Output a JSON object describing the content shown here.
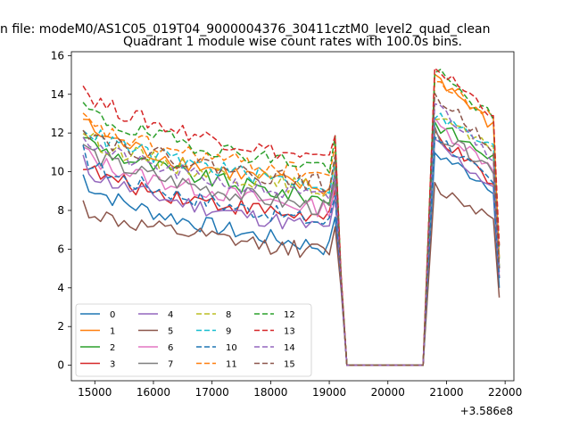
{
  "chart_data": {
    "type": "line",
    "suptitle": "n file: modeM0/AS1C05_019T04_9000004376_30411cztM0_level2_quad_clean",
    "title": "Quadrant 1 module wise count rates with 100.0s bins.",
    "xlabel": "",
    "ylabel": "",
    "x_offset_label": "+3.586e8",
    "xlim": [
      14600,
      22150
    ],
    "ylim": [
      -0.8,
      16.2
    ],
    "xticks": [
      15000,
      16000,
      17000,
      18000,
      19000,
      20000,
      21000,
      22000
    ],
    "xtick_labels": [
      "15000",
      "16000",
      "17000",
      "18000",
      "19000",
      "20000",
      "21000",
      "22000"
    ],
    "yticks": [
      0,
      2,
      4,
      6,
      8,
      10,
      12,
      14,
      16
    ],
    "ytick_labels": [
      "0",
      "2",
      "4",
      "6",
      "8",
      "10",
      "12",
      "14",
      "16"
    ],
    "grid": false,
    "legend_location": "lower-left",
    "legend_columns": 4,
    "segments": {
      "seg1_start": 14800,
      "seg1_end": 19100,
      "step": 100,
      "gap_start": 19300,
      "gap_end": 20600,
      "seg2_start": 20800,
      "seg2_end": 21900
    },
    "series": [
      {
        "name": "0",
        "color": "#1f77b4",
        "dash": "solid",
        "seg1": [
          9.8,
          6.0
        ],
        "drop": 4.2,
        "seg2": [
          11.0,
          9.0
        ],
        "end": 4.0
      },
      {
        "name": "1",
        "color": "#ff7f0e",
        "dash": "solid",
        "seg1": [
          12.8,
          9.0
        ],
        "drop": 4.6,
        "seg2": [
          15.0,
          12.0
        ],
        "end": 5.0
      },
      {
        "name": "2",
        "color": "#2ca02c",
        "dash": "solid",
        "seg1": [
          12.0,
          8.5
        ],
        "drop": 4.5,
        "seg2": [
          12.5,
          10.5
        ],
        "end": 5.5
      },
      {
        "name": "3",
        "color": "#d62728",
        "dash": "solid",
        "seg1": [
          10.5,
          7.5
        ],
        "drop": 4.3,
        "seg2": [
          12.0,
          9.0
        ],
        "end": 4.5
      },
      {
        "name": "4",
        "color": "#9467bd",
        "dash": "solid",
        "seg1": [
          10.5,
          7.0
        ],
        "drop": 4.3,
        "seg2": [
          11.5,
          9.0
        ],
        "end": 4.5
      },
      {
        "name": "5",
        "color": "#8c564b",
        "dash": "solid",
        "seg1": [
          8.3,
          5.8
        ],
        "drop": 4.0,
        "seg2": [
          9.2,
          7.5
        ],
        "end": 3.5
      },
      {
        "name": "6",
        "color": "#e377c2",
        "dash": "solid",
        "seg1": [
          11.2,
          8.0
        ],
        "drop": 4.4,
        "seg2": [
          12.5,
          10.0
        ],
        "end": 4.8
      },
      {
        "name": "7",
        "color": "#7f7f7f",
        "dash": "solid",
        "seg1": [
          11.5,
          8.0
        ],
        "drop": 4.4,
        "seg2": [
          12.0,
          10.0
        ],
        "end": 5.0
      },
      {
        "name": "8",
        "color": "#bcbd22",
        "dash": "dashed",
        "seg1": [
          12.2,
          9.0
        ],
        "drop": 4.5,
        "seg2": [
          13.0,
          10.8
        ],
        "end": 5.2
      },
      {
        "name": "9",
        "color": "#17becf",
        "dash": "dashed",
        "seg1": [
          12.5,
          9.2
        ],
        "drop": 4.5,
        "seg2": [
          13.0,
          11.0
        ],
        "end": 5.0
      },
      {
        "name": "10",
        "color": "#1f77b4",
        "dash": "dashed",
        "seg1": [
          11.0,
          7.3
        ],
        "drop": 4.3,
        "seg2": [
          12.0,
          9.0
        ],
        "end": 4.5
      },
      {
        "name": "11",
        "color": "#ff7f0e",
        "dash": "dashed",
        "seg1": [
          12.8,
          9.8
        ],
        "drop": 4.6,
        "seg2": [
          14.8,
          12.5
        ],
        "end": 5.5
      },
      {
        "name": "12",
        "color": "#2ca02c",
        "dash": "dashed",
        "seg1": [
          13.5,
          10.2
        ],
        "drop": 4.7,
        "seg2": [
          15.2,
          12.5
        ],
        "end": 6.0
      },
      {
        "name": "13",
        "color": "#d62728",
        "dash": "dashed",
        "seg1": [
          14.5,
          10.5
        ],
        "drop": 4.8,
        "seg2": [
          15.4,
          12.8
        ],
        "end": 6.2
      },
      {
        "name": "14",
        "color": "#9467bd",
        "dash": "dashed",
        "seg1": [
          12.0,
          8.5
        ],
        "drop": 4.4,
        "seg2": [
          13.5,
          10.5
        ],
        "end": 5.0
      },
      {
        "name": "15",
        "color": "#8c564b",
        "dash": "dashed",
        "seg1": [
          12.5,
          9.3
        ],
        "drop": 4.5,
        "seg2": [
          14.0,
          11.0
        ],
        "end": 5.0
      }
    ]
  }
}
